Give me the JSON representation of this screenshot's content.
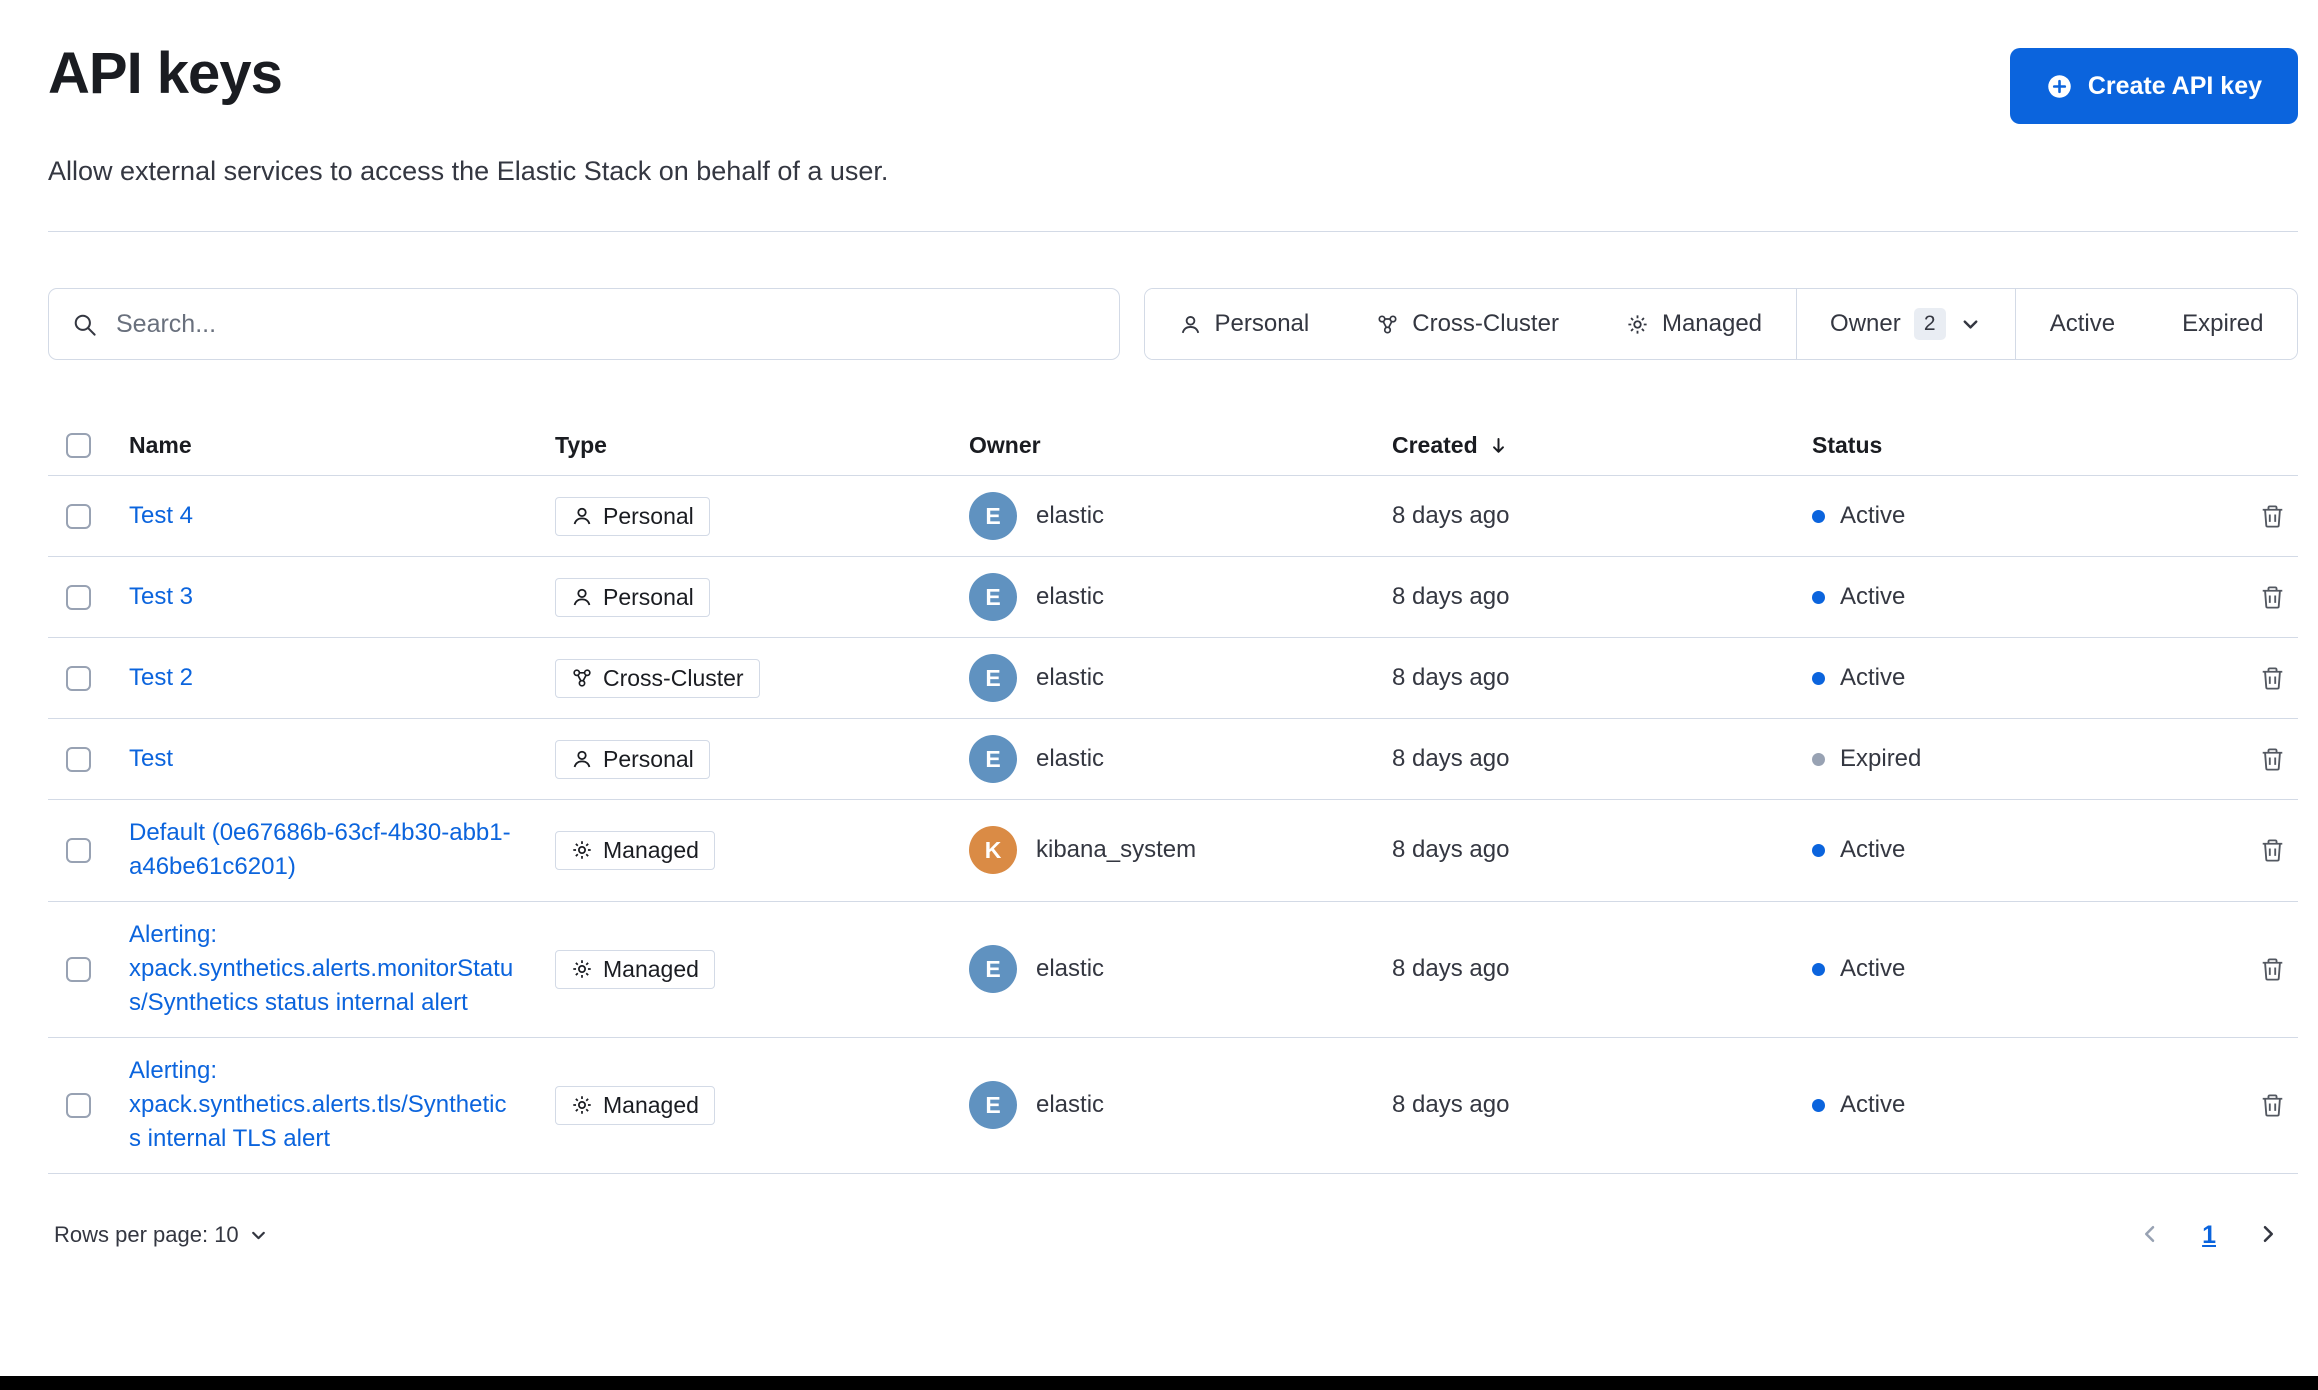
{
  "page": {
    "title": "API keys",
    "subtitle": "Allow external services to access the Elastic Stack on behalf of a user.",
    "create_button": "Create API key"
  },
  "toolbar": {
    "search_placeholder": "Search...",
    "search_icon": "search-icon",
    "filters": {
      "personal": "Personal",
      "personal_icon": "user-icon",
      "cross_cluster": "Cross-Cluster",
      "cross_cluster_icon": "cluster-icon",
      "managed": "Managed",
      "managed_icon": "gear-icon",
      "owner": "Owner",
      "owner_count": "2",
      "owner_chevron_icon": "chevron-down-icon",
      "active": "Active",
      "expired": "Expired"
    }
  },
  "table": {
    "columns": {
      "name": "Name",
      "type": "Type",
      "owner": "Owner",
      "created": "Created",
      "created_sort_icon": "sort-down-icon",
      "status": "Status"
    },
    "rows": [
      {
        "name": "Test 4",
        "type": "Personal",
        "type_icon": "user-icon",
        "owner": "elastic",
        "owner_initial": "E",
        "avatar_color": "#6092C0",
        "created": "8 days ago",
        "status": "Active",
        "status_kind": "active"
      },
      {
        "name": "Test 3",
        "type": "Personal",
        "type_icon": "user-icon",
        "owner": "elastic",
        "owner_initial": "E",
        "avatar_color": "#6092C0",
        "created": "8 days ago",
        "status": "Active",
        "status_kind": "active"
      },
      {
        "name": "Test 2",
        "type": "Cross-Cluster",
        "type_icon": "cluster-icon",
        "owner": "elastic",
        "owner_initial": "E",
        "avatar_color": "#6092C0",
        "created": "8 days ago",
        "status": "Active",
        "status_kind": "active"
      },
      {
        "name": "Test",
        "type": "Personal",
        "type_icon": "user-icon",
        "owner": "elastic",
        "owner_initial": "E",
        "avatar_color": "#6092C0",
        "created": "8 days ago",
        "status": "Expired",
        "status_kind": "expired"
      },
      {
        "name": "Default (0e67686b-63cf-4b30-abb1-a46be61c6201)",
        "type": "Managed",
        "type_icon": "gear-icon",
        "owner": "kibana_system",
        "owner_initial": "K",
        "avatar_color": "#DA8B45",
        "created": "8 days ago",
        "status": "Active",
        "status_kind": "active"
      },
      {
        "name": "Alerting: xpack.synthetics.alerts.monitorStatus/Synthetics status internal alert",
        "type": "Managed",
        "type_icon": "gear-icon",
        "owner": "elastic",
        "owner_initial": "E",
        "avatar_color": "#6092C0",
        "created": "8 days ago",
        "status": "Active",
        "status_kind": "active"
      },
      {
        "name": "Alerting: xpack.synthetics.alerts.tls/Synthetics internal TLS alert",
        "type": "Managed",
        "type_icon": "gear-icon",
        "owner": "elastic",
        "owner_initial": "E",
        "avatar_color": "#6092C0",
        "created": "8 days ago",
        "status": "Active",
        "status_kind": "active"
      }
    ]
  },
  "footer": {
    "rows_per_page": "Rows per page: 10",
    "page_number": "1"
  },
  "colors": {
    "primary": "#0B64DD",
    "text": "#343741",
    "title": "#1A1C21",
    "muted": "#69707D",
    "border": "#D3DAE6",
    "status_active": "#0B64DD",
    "status_expired": "#98A2B3",
    "count_bg": "#E9EDF3",
    "avatar_blue": "#6092C0",
    "avatar_orange": "#DA8B45"
  }
}
